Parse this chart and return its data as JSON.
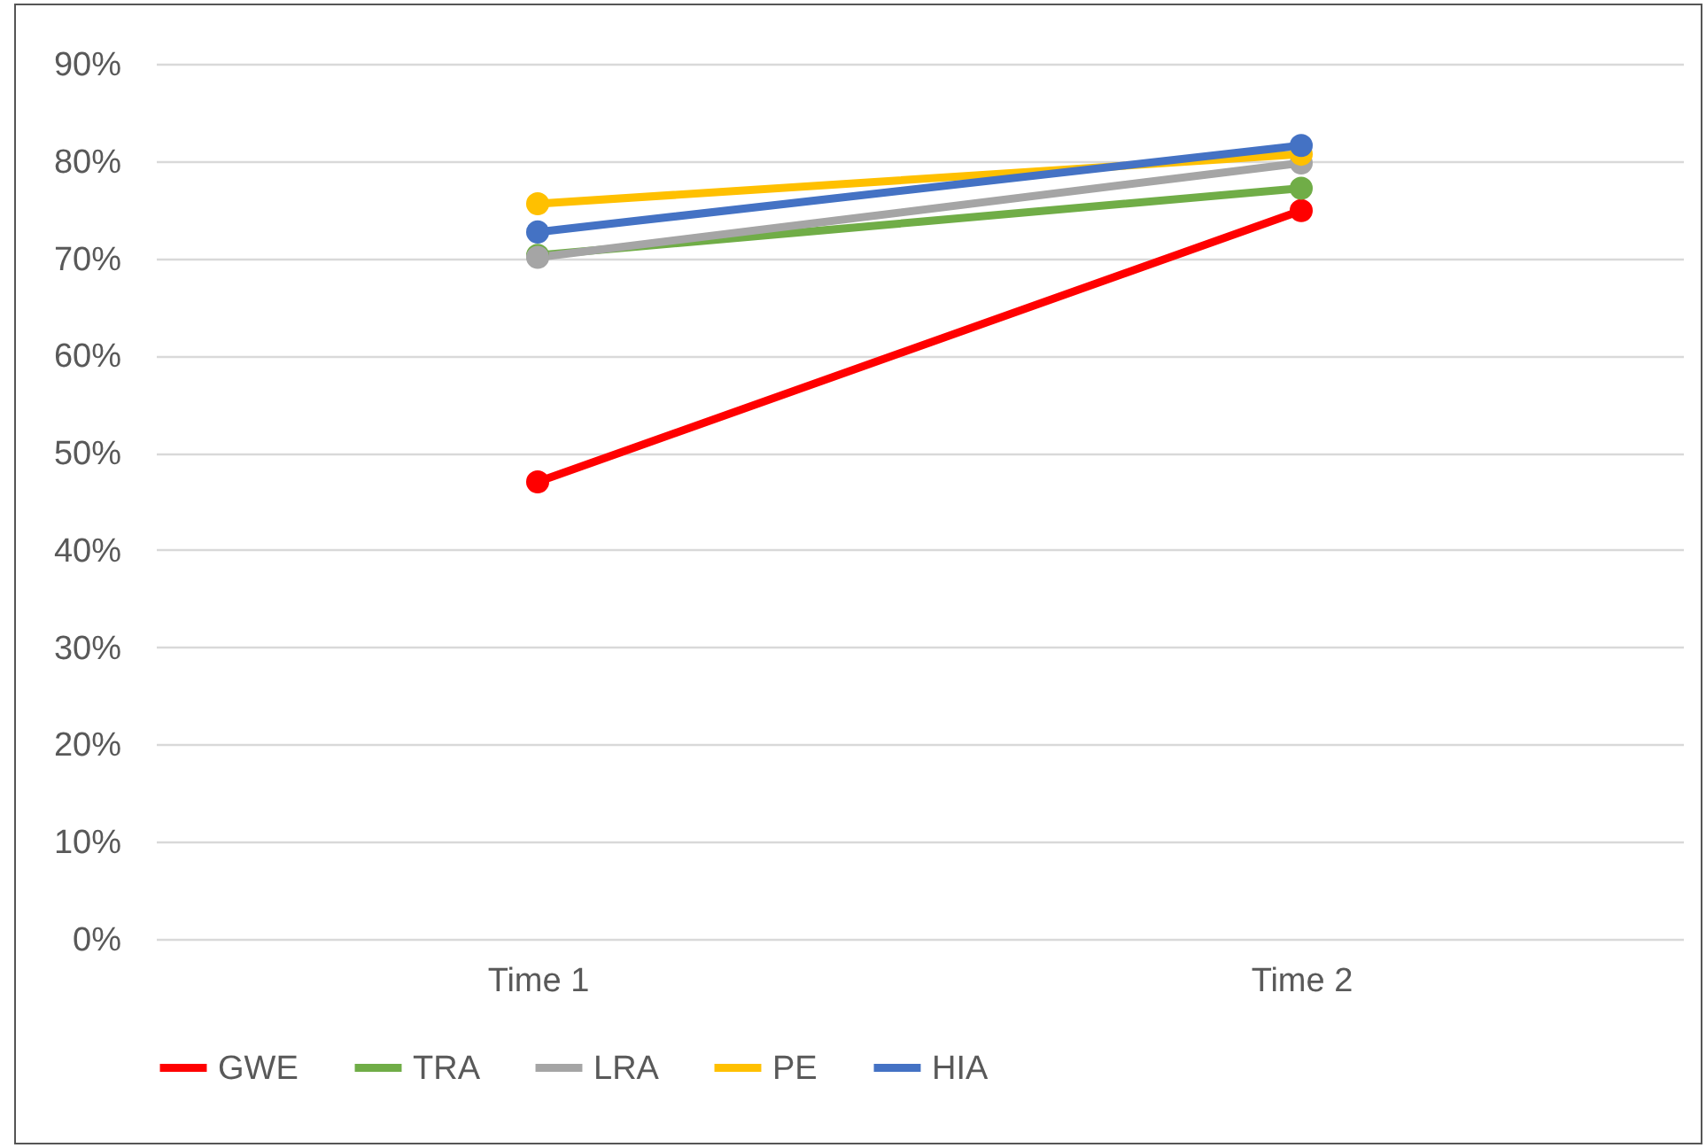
{
  "chart_data": {
    "type": "line",
    "categories": [
      "Time 1",
      "Time 2"
    ],
    "series": [
      {
        "name": "GWE",
        "color": "#ff0000",
        "values": [
          47.0,
          74.9
        ]
      },
      {
        "name": "TRA",
        "color": "#70ad47",
        "values": [
          70.3,
          77.2
        ]
      },
      {
        "name": "LRA",
        "color": "#a5a5a5",
        "values": [
          70.1,
          79.8
        ]
      },
      {
        "name": "PE",
        "color": "#ffc000",
        "values": [
          75.6,
          80.7
        ]
      },
      {
        "name": "HIA",
        "color": "#4472c4",
        "values": [
          72.7,
          81.6
        ]
      }
    ],
    "ylim": [
      0,
      90
    ],
    "yticks": [
      {
        "value": 0,
        "label": "0%"
      },
      {
        "value": 10,
        "label": "10%"
      },
      {
        "value": 20,
        "label": "20%"
      },
      {
        "value": 30,
        "label": "30%"
      },
      {
        "value": 40,
        "label": "40%"
      },
      {
        "value": 50,
        "label": "50%"
      },
      {
        "value": 60,
        "label": "60%"
      },
      {
        "value": 70,
        "label": "70%"
      },
      {
        "value": 80,
        "label": "80%"
      },
      {
        "value": 90,
        "label": "90%"
      }
    ],
    "grid": "y",
    "legend": "bottom",
    "marker": "circle",
    "line_style": "solid"
  }
}
